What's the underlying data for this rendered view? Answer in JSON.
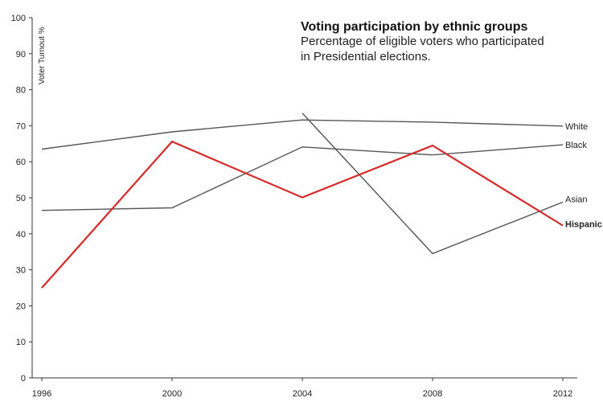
{
  "chart_data": {
    "type": "line",
    "title": "Voting participation by ethnic groups",
    "subtitle_lines": [
      "Percentage of eligible voters who participated",
      "in Presidential elections."
    ],
    "ylabel": "Voter Turnout %",
    "xlabel": "",
    "x": [
      1996,
      2000,
      2004,
      2008,
      2012
    ],
    "ylim": [
      0,
      100
    ],
    "yticks": [
      0,
      10,
      20,
      30,
      40,
      50,
      60,
      70,
      80,
      90,
      100
    ],
    "grid": false,
    "series": [
      {
        "name": "White",
        "values": [
          63.5,
          68.3,
          71.6,
          71.0,
          69.9
        ],
        "color": "#555555",
        "bold": false
      },
      {
        "name": "Black",
        "values": [
          46.5,
          47.2,
          64.1,
          61.9,
          64.7
        ],
        "color": "#555555",
        "bold": false
      },
      {
        "name": "Asian",
        "values": [
          null,
          null,
          73.5,
          34.5,
          48.8
        ],
        "color": "#555555",
        "bold": false
      },
      {
        "name": "Hispanic",
        "values": [
          25.0,
          65.6,
          50.1,
          64.5,
          42.3
        ],
        "color": "#d42a2a",
        "bold": true
      }
    ]
  }
}
